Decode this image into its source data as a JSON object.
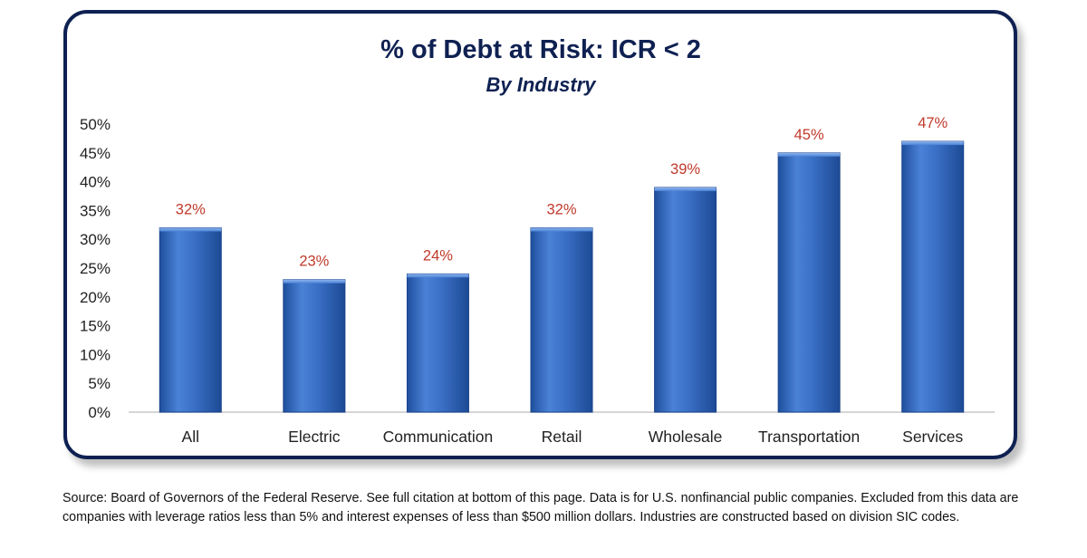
{
  "chart_data": {
    "type": "bar",
    "title": "% of Debt at Risk: ICR < 2",
    "subtitle": "By Industry",
    "xlabel": "",
    "ylabel": "",
    "categories": [
      "All",
      "Electric",
      "Communication",
      "Retail",
      "Wholesale",
      "Transportation",
      "Services"
    ],
    "values": [
      32,
      23,
      24,
      32,
      39,
      45,
      47
    ],
    "data_labels": [
      "32%",
      "23%",
      "24%",
      "32%",
      "39%",
      "45%",
      "47%"
    ],
    "ylim": [
      0,
      50
    ],
    "yticks": [
      0,
      5,
      10,
      15,
      20,
      25,
      30,
      35,
      40,
      45,
      50
    ],
    "ytick_labels": [
      "0%",
      "5%",
      "10%",
      "15%",
      "20%",
      "25%",
      "30%",
      "35%",
      "40%",
      "45%",
      "50%"
    ],
    "grid": false,
    "legend": "none",
    "colors": {
      "bar": "#3a6fc4",
      "data_label": "#c0392b",
      "title": "#0f2152",
      "border": "#0f2152"
    }
  },
  "footnote": "Source: Board of Governors of the Federal Reserve. See full citation at bottom of this page. Data is for U.S. nonfinancial public companies. Excluded from this data are companies with leverage ratios less than 5% and interest expenses of less than $500 million dollars. Industries are constructed based on division SIC codes."
}
